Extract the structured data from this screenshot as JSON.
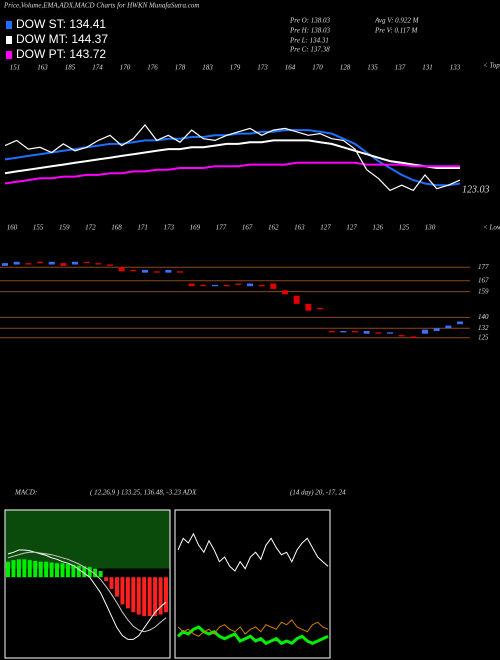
{
  "header": {
    "title": "Price,Volume,EMA,ADX,MACD Charts for HWKN  MunafaSutra.com",
    "stats": [
      "Pre  O: 138.03",
      "Pre  H: 138.03",
      "Pre  L: 134.31",
      "Pre  C: 137.38",
      "Avg  V: 0.922  M",
      "Pre  V: 0.117 M"
    ]
  },
  "chart_data": [
    {
      "type": "line",
      "series": [
        {
          "name": "DOW ST: 134.41",
          "color": "#1e6fff",
          "values": [
            151,
            152,
            153,
            154,
            155,
            156,
            157,
            158,
            159,
            160,
            160,
            161,
            162,
            162,
            163,
            163,
            164,
            164,
            165,
            165,
            166,
            166,
            167,
            167,
            168,
            168,
            168,
            167,
            166,
            163,
            160,
            155,
            150,
            146,
            142,
            139,
            137,
            136,
            136,
            137
          ]
        },
        {
          "name": "DOW MT: 144.37",
          "color": "#ffffff",
          "values": [
            143,
            144,
            145,
            146,
            147,
            148,
            149,
            150,
            151,
            152,
            153,
            154,
            155,
            156,
            157,
            157,
            158,
            158,
            159,
            160,
            160,
            161,
            161,
            162,
            162,
            162,
            162,
            161,
            160,
            158,
            156,
            154,
            152,
            150,
            149,
            148,
            147,
            146,
            146,
            146
          ]
        },
        {
          "name": "DOW PT: 143.72",
          "color": "#ff00ff",
          "values": [
            137,
            138,
            139,
            140,
            140,
            141,
            141,
            142,
            142,
            143,
            143,
            144,
            144,
            145,
            145,
            146,
            146,
            146,
            147,
            147,
            147,
            148,
            148,
            148,
            148,
            149,
            149,
            149,
            149,
            149,
            149,
            148,
            148,
            148,
            148,
            147,
            147,
            147,
            147,
            147
          ]
        },
        {
          "color": "#ffffff",
          "values": [
            159,
            162,
            157,
            158,
            155,
            160,
            156,
            158,
            162,
            165,
            159,
            163,
            171,
            162,
            165,
            161,
            168,
            163,
            162,
            165,
            167,
            169,
            165,
            168,
            169,
            167,
            165,
            166,
            163,
            162,
            157,
            145,
            140,
            133,
            136,
            133,
            142,
            134,
            136,
            139
          ]
        }
      ],
      "ylim": [
        110,
        200
      ],
      "top_labels": [
        151,
        163,
        185,
        174,
        170,
        176,
        178,
        183,
        179,
        173,
        164,
        170,
        128,
        135,
        137,
        131,
        133
      ],
      "low_labels": [
        160,
        155,
        159,
        172,
        168,
        171,
        173,
        169,
        177,
        167,
        162,
        163,
        127,
        127,
        126,
        125,
        130
      ],
      "tops_label": "< Tops",
      "lows_label": "< Lows",
      "last_label": "123.03"
    },
    {
      "type": "candlestick",
      "open": [
        178,
        179,
        180,
        181,
        179,
        180,
        179,
        181,
        180,
        179,
        177,
        175,
        173,
        174,
        173,
        174,
        165,
        164,
        163,
        164,
        165,
        163,
        164,
        165,
        160,
        156,
        150,
        147,
        130,
        129,
        130,
        128,
        129,
        128,
        127,
        126,
        128,
        130,
        132,
        135
      ],
      "close": [
        180,
        181,
        179,
        180,
        181,
        178,
        181,
        180,
        179,
        178,
        174,
        174,
        175,
        173,
        175,
        173,
        163,
        163,
        164,
        163,
        164,
        165,
        163,
        161,
        157,
        150,
        145,
        146,
        129,
        130,
        129,
        130,
        128,
        129,
        126,
        125,
        131,
        132,
        134,
        137
      ],
      "up_color": "#3a6fff",
      "down_color": "#e00000",
      "line_color": "#8a4a1a",
      "ylim": [
        116,
        186
      ],
      "yticks": [
        177,
        167,
        159,
        140,
        132,
        125
      ]
    },
    {
      "type": "macd",
      "title": "MACD:",
      "subtitle": "( 12,26,9 ) 133.25, 136.48, -3.23 ADX",
      "series": [
        {
          "color": "#ffffff",
          "values": [
            3,
            3.2,
            3.5,
            3.5,
            3.4,
            3.2,
            3,
            2.8,
            2.5,
            2.3,
            2,
            1.8,
            1.5,
            1,
            0.5,
            0,
            -1,
            -2,
            -3.5,
            -5,
            -6.5,
            -7.5,
            -8,
            -8,
            -7.5,
            -6.5,
            -5.5,
            -4.5,
            -3.8,
            -3.2
          ]
        },
        {
          "color": "#cccccc",
          "values": [
            2.5,
            2.7,
            2.9,
            3.1,
            3.2,
            3.2,
            3.1,
            3,
            2.9,
            2.7,
            2.5,
            2.3,
            2,
            1.7,
            1.3,
            0.9,
            0.4,
            -0.3,
            -1.2,
            -2.2,
            -3.3,
            -4.5,
            -5.5,
            -6.3,
            -6.8,
            -7,
            -6.8,
            -6.4,
            -5.8,
            -5.2
          ]
        }
      ],
      "histogram": [
        2,
        2.2,
        2.3,
        2.3,
        2.2,
        2.1,
        2,
        2,
        1.9,
        1.8,
        1.8,
        1.7,
        1.6,
        1.5,
        1.4,
        1.3,
        1.1,
        0.8,
        -0.5,
        -1.5,
        -2.5,
        -3.5,
        -4,
        -4.5,
        -4.8,
        -5,
        -5,
        -5,
        -4.8,
        -4.5
      ],
      "up_color": "#00ee00",
      "down_color": "#ff2020",
      "ylim": [
        -10,
        8
      ]
    },
    {
      "type": "adx",
      "title": "(14 day) 20, -17, 24",
      "series": [
        {
          "color": "#ffffff",
          "values": [
            45,
            50,
            48,
            52,
            47,
            44,
            49,
            45,
            40,
            42,
            38,
            36,
            40,
            37,
            42,
            44,
            41,
            47,
            50,
            46,
            43,
            44,
            40,
            45,
            48,
            50,
            46,
            42,
            40,
            38
          ]
        },
        {
          "color": "#00ee00",
          "values": [
            8,
            10,
            9,
            11,
            12,
            10,
            9,
            10,
            8,
            7,
            8,
            9,
            6,
            7,
            8,
            6,
            7,
            5,
            6,
            7,
            5,
            6,
            5,
            7,
            8,
            6,
            5,
            6,
            7,
            8
          ]
        },
        {
          "color": "#d08000",
          "values": [
            12,
            10,
            11,
            9,
            8,
            10,
            11,
            9,
            12,
            13,
            11,
            10,
            12,
            9,
            11,
            12,
            10,
            13,
            12,
            11,
            14,
            13,
            15,
            12,
            11,
            10,
            13,
            14,
            12,
            11
          ]
        }
      ],
      "ylim": [
        0,
        60
      ]
    }
  ]
}
